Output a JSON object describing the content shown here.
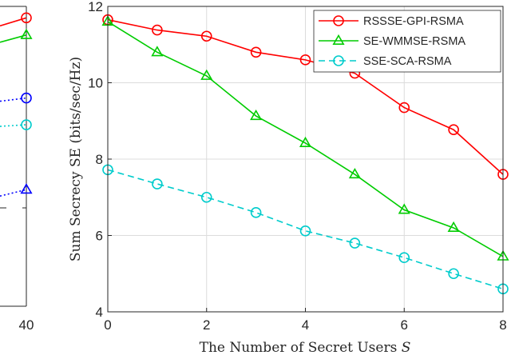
{
  "chart_data": [
    {
      "type": "line",
      "title": "",
      "xlabel": "",
      "ylabel": "",
      "x_visible_ticks": [
        "40"
      ],
      "series": [
        {
          "color": "#ff0000",
          "marker": "circle",
          "linestyle": "solid",
          "end_level": 11.7
        },
        {
          "color": "#00cc00",
          "marker": "triangle",
          "linestyle": "solid",
          "end_level": 11.25
        },
        {
          "color": "#0000ff",
          "marker": "circle",
          "linestyle": "dotted",
          "end_level": 9.6
        },
        {
          "color": "#00cccc",
          "marker": "circle",
          "linestyle": "dotted",
          "end_level": 8.9
        },
        {
          "color": "#0000ff",
          "marker": "triangle",
          "linestyle": "dotted",
          "end_level": 7.2
        }
      ]
    },
    {
      "type": "line",
      "title": "",
      "xlabel": "The Number of Secret Users S",
      "xlabel_text": "The Number of Secret Users ",
      "xlabel_var": "S",
      "ylabel": "Sum Secrecy SE (bits/sec/Hz)",
      "xlim": [
        0,
        8
      ],
      "ylim": [
        4,
        12
      ],
      "xticks": [
        0,
        2,
        4,
        6,
        8
      ],
      "yticks": [
        4,
        6,
        8,
        10,
        12
      ],
      "grid": true,
      "legend_position": "top-right",
      "x": [
        0,
        1,
        2,
        3,
        4,
        5,
        6,
        7,
        8
      ],
      "series": [
        {
          "name": "RSSSE-GPI-RSMA",
          "color": "#ff0000",
          "marker": "circle",
          "linestyle": "solid",
          "values": [
            11.65,
            11.38,
            11.22,
            10.8,
            10.6,
            10.25,
            9.35,
            8.77,
            7.6
          ]
        },
        {
          "name": "SE-WMMSE-RSMA",
          "color": "#00cc00",
          "marker": "triangle",
          "linestyle": "solid",
          "values": [
            11.6,
            10.8,
            10.18,
            9.13,
            8.42,
            7.6,
            6.67,
            6.2,
            5.45
          ]
        },
        {
          "name": "SSE-SCA-RSMA",
          "color": "#00cccc",
          "marker": "circle",
          "linestyle": "dashed",
          "values": [
            7.72,
            7.35,
            7.0,
            6.6,
            6.12,
            5.8,
            5.42,
            5.0,
            4.6
          ]
        }
      ]
    }
  ]
}
